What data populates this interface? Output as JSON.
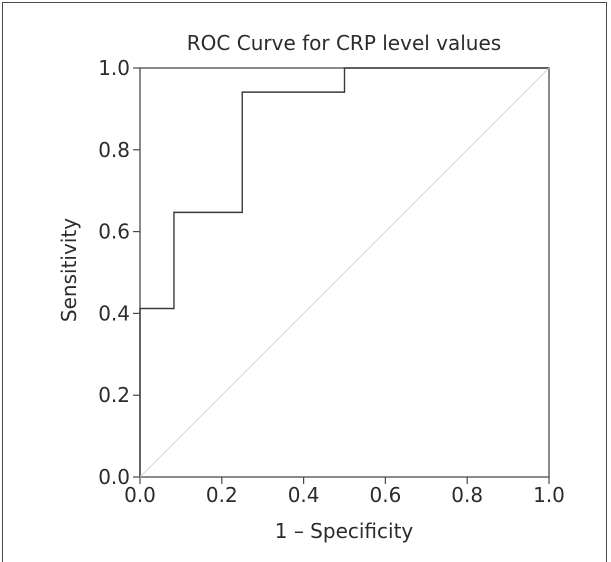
{
  "chart_data": {
    "type": "line",
    "title": "ROC Curve for CRP level values",
    "xlabel": "1 – Specificity",
    "ylabel": "Sensitivity",
    "xlim": [
      0,
      1
    ],
    "ylim": [
      0,
      1
    ],
    "xticks": [
      "0.0",
      "0.2",
      "0.4",
      "0.6",
      "0.8",
      "1.0"
    ],
    "yticks": [
      "0.0",
      "0.2",
      "0.4",
      "0.6",
      "0.8",
      "1.0"
    ],
    "grid": false,
    "series": [
      {
        "style": "step",
        "color": "#3a3a3a",
        "points": [
          [
            0.0,
            0.0
          ],
          [
            0.0,
            0.412
          ],
          [
            0.083,
            0.412
          ],
          [
            0.083,
            0.647
          ],
          [
            0.25,
            0.647
          ],
          [
            0.25,
            0.941
          ],
          [
            0.5,
            0.941
          ],
          [
            0.5,
            1.0
          ],
          [
            1.0,
            1.0
          ]
        ]
      },
      {
        "style": "reference",
        "color": "#d8d8d8",
        "points": [
          [
            0.0,
            0.0
          ],
          [
            1.0,
            1.0
          ]
        ]
      }
    ]
  }
}
